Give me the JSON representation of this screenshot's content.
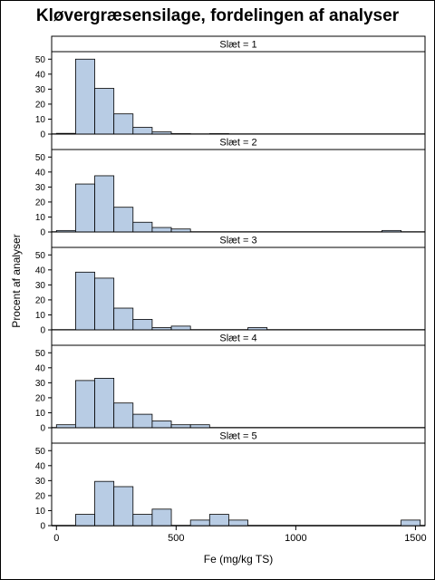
{
  "chart_data": {
    "type": "bar",
    "title": "Kløvergræsensilage, fordelingen af analyser",
    "xlabel": "Fe (mg/kg TS)",
    "ylabel": "Procent af analyser",
    "bin_width": 80,
    "xlim": [
      -20,
      1540
    ],
    "ylim": [
      0,
      55
    ],
    "x_ticks": [
      0,
      500,
      1000,
      1500
    ],
    "y_ticks": [
      0,
      10,
      20,
      30,
      40,
      50
    ],
    "bar_color": "#b8cce4",
    "panels": [
      {
        "label": "Slæt = 1",
        "bins": [
          {
            "x": 0,
            "value": 0.5
          },
          {
            "x": 80,
            "value": 50
          },
          {
            "x": 160,
            "value": 30.5
          },
          {
            "x": 240,
            "value": 13.5
          },
          {
            "x": 320,
            "value": 4.5
          },
          {
            "x": 400,
            "value": 1.5
          },
          {
            "x": 480,
            "value": 0.3
          },
          {
            "x": 640,
            "value": 0.3
          }
        ]
      },
      {
        "label": "Slæt = 2",
        "bins": [
          {
            "x": 0,
            "value": 1
          },
          {
            "x": 80,
            "value": 32
          },
          {
            "x": 160,
            "value": 37.5
          },
          {
            "x": 240,
            "value": 16.5
          },
          {
            "x": 320,
            "value": 6.5
          },
          {
            "x": 400,
            "value": 3
          },
          {
            "x": 480,
            "value": 2
          },
          {
            "x": 1360,
            "value": 1
          }
        ]
      },
      {
        "label": "Slæt = 3",
        "bins": [
          {
            "x": 80,
            "value": 38.5
          },
          {
            "x": 160,
            "value": 34.5
          },
          {
            "x": 240,
            "value": 14.5
          },
          {
            "x": 320,
            "value": 7
          },
          {
            "x": 400,
            "value": 1.5
          },
          {
            "x": 480,
            "value": 2.5
          },
          {
            "x": 800,
            "value": 1.5
          }
        ]
      },
      {
        "label": "Slæt = 4",
        "bins": [
          {
            "x": 0,
            "value": 2
          },
          {
            "x": 80,
            "value": 31.5
          },
          {
            "x": 160,
            "value": 33
          },
          {
            "x": 240,
            "value": 16.5
          },
          {
            "x": 320,
            "value": 9
          },
          {
            "x": 400,
            "value": 4.5
          },
          {
            "x": 480,
            "value": 2
          },
          {
            "x": 560,
            "value": 2
          }
        ]
      },
      {
        "label": "Slæt = 5",
        "bins": [
          {
            "x": 80,
            "value": 7.5
          },
          {
            "x": 160,
            "value": 29.5
          },
          {
            "x": 240,
            "value": 26
          },
          {
            "x": 320,
            "value": 7.5
          },
          {
            "x": 400,
            "value": 11
          },
          {
            "x": 560,
            "value": 3.7
          },
          {
            "x": 640,
            "value": 7.5
          },
          {
            "x": 720,
            "value": 3.7
          },
          {
            "x": 1440,
            "value": 3.7
          }
        ]
      }
    ]
  }
}
